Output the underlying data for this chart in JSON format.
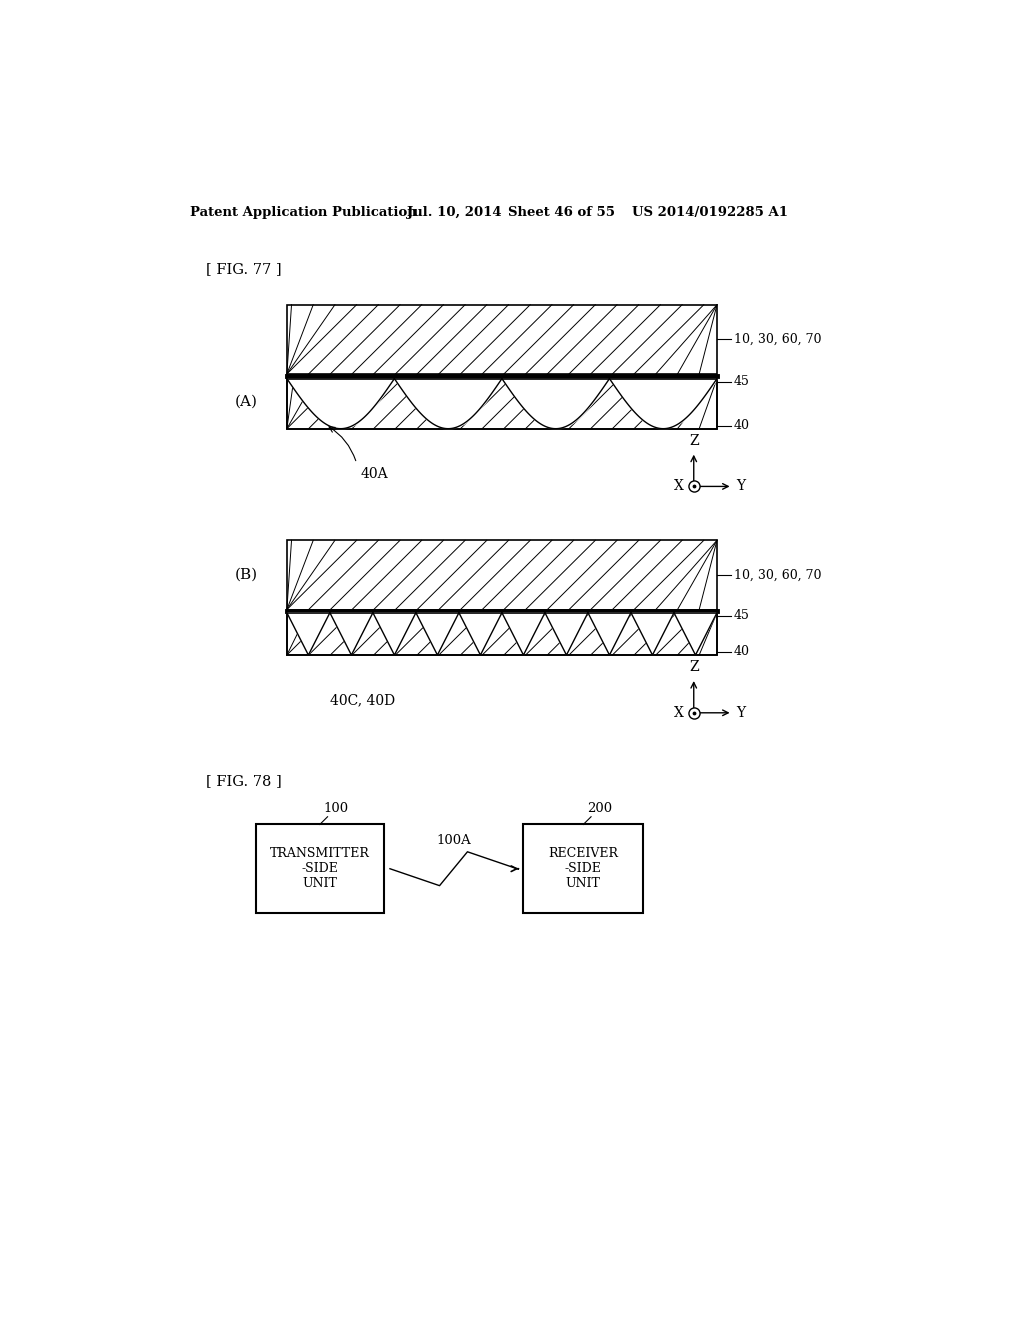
{
  "bg_color": "#ffffff",
  "header_text": "Patent Application Publication",
  "header_date": "Jul. 10, 2014",
  "header_sheet": "Sheet 46 of 55",
  "header_patent": "US 2014/0192285 A1",
  "fig77_label": "[ FIG. 77 ]",
  "fig78_label": "[ FIG. 78 ]",
  "label_A": "(A)",
  "label_B": "(B)",
  "label_10_30_60_70": "10, 30, 60, 70",
  "label_45_A": "45",
  "label_40_A": "40",
  "label_40A": "40A",
  "label_10_30_60_70_B": "10, 30, 60, 70",
  "label_45_B": "45",
  "label_40_B": "40",
  "label_40C_40D": "40C, 40D",
  "label_100": "100",
  "label_100A": "100A",
  "label_200": "200",
  "box1_text": "TRANSMITTER\n-SIDE\nUNIT",
  "box2_text": "RECEIVER\n-SIDE\nUNIT",
  "line_color": "#000000"
}
